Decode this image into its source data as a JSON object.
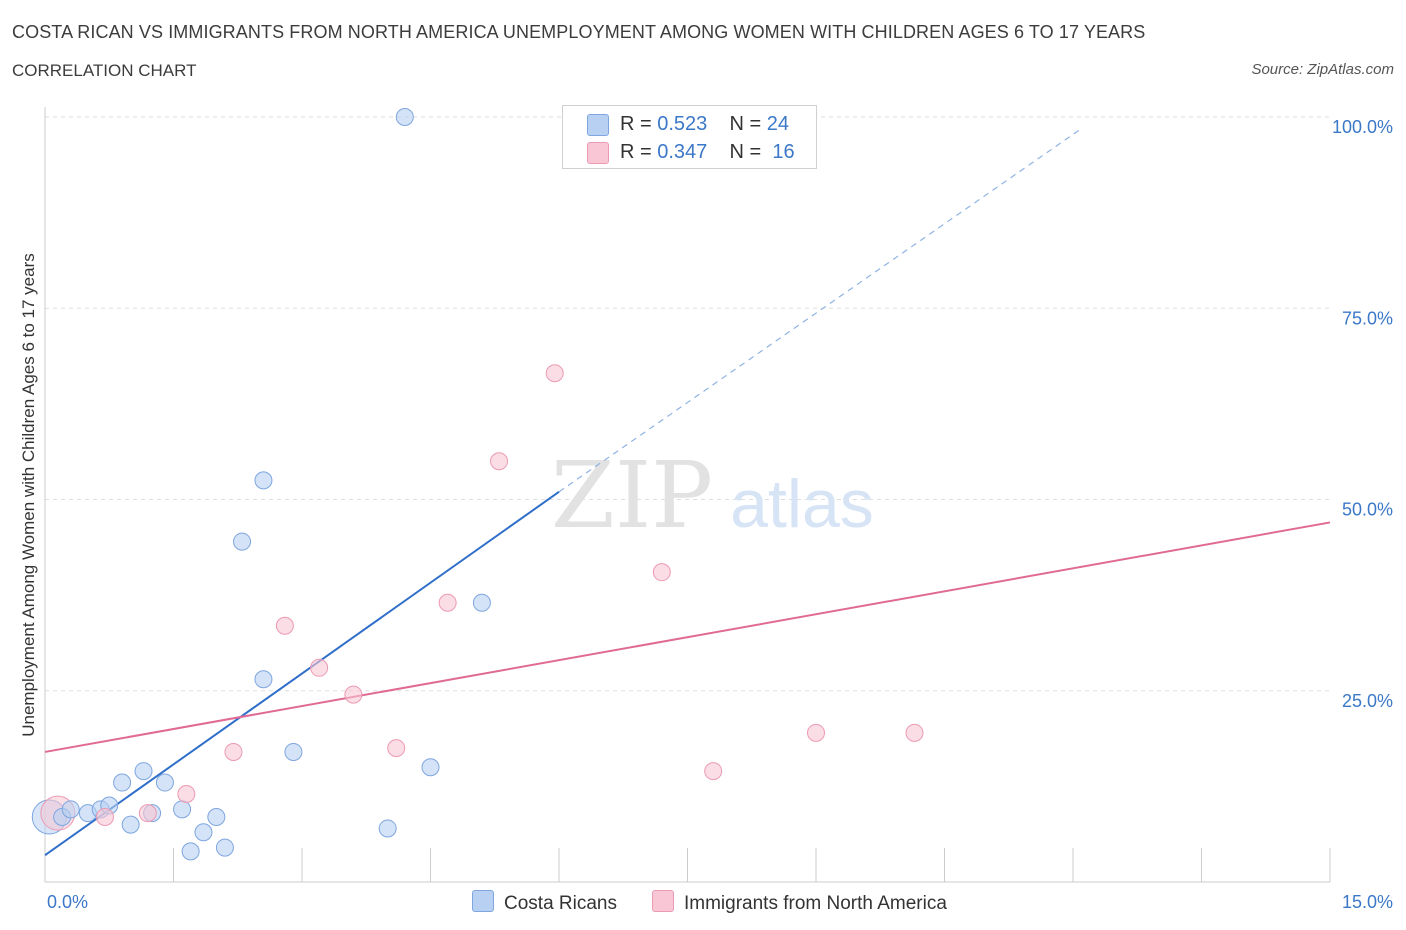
{
  "header": {
    "title": "COSTA RICAN VS IMMIGRANTS FROM NORTH AMERICA UNEMPLOYMENT AMONG WOMEN WITH CHILDREN AGES 6 TO 17 YEARS",
    "subtitle": "CORRELATION CHART",
    "source": "Source: ZipAtlas.com"
  },
  "legend": {
    "rows": [
      {
        "r_label": "R = ",
        "r_value": "0.523",
        "n_label": "N = ",
        "n_value": "24",
        "color": "#b8d0f2",
        "border": "#7ea6df"
      },
      {
        "r_label": "R = ",
        "r_value": "0.347",
        "n_label": "N = ",
        "n_value": "16",
        "color": "#f8c6d4",
        "border": "#ec9ab3"
      }
    ]
  },
  "bottom_legend": {
    "series1": "Costa Ricans",
    "series2": "Immigrants from North America"
  },
  "watermark": {
    "zip": "ZIP",
    "atlas": "atlas"
  },
  "colors": {
    "blue_point_fill": "#b8d0f2",
    "blue_point_stroke": "#7ea6df",
    "pink_point_fill": "#f8c6d4",
    "pink_point_stroke": "#ec9ab3",
    "blue_line": "#2f6fc9",
    "pink_line": "#e06a94",
    "tick_label": "#3b78c8",
    "grid": "#dddddd"
  },
  "chart_data": {
    "type": "scatter",
    "title": "COSTA RICAN VS IMMIGRANTS FROM NORTH AMERICA UNEMPLOYMENT AMONG WOMEN WITH CHILDREN AGES 6 TO 17 YEARS",
    "xlabel": "",
    "ylabel": "Unemployment Among Women with Children Ages 6 to 17 years",
    "xlim": [
      0,
      15
    ],
    "ylim": [
      0,
      100
    ],
    "x_tick_labels": [
      "0.0%",
      "15.0%"
    ],
    "y_ticks": [
      25,
      50,
      75,
      100
    ],
    "y_tick_labels": [
      "25.0%",
      "50.0%",
      "75.0%",
      "100.0%"
    ],
    "grid": true,
    "series": [
      {
        "name": "Costa Ricans",
        "R": 0.523,
        "N": 24,
        "points": [
          {
            "x": 0.05,
            "y": 8.5,
            "size": "large"
          },
          {
            "x": 0.2,
            "y": 8.5
          },
          {
            "x": 0.3,
            "y": 9.5
          },
          {
            "x": 0.5,
            "y": 9.0
          },
          {
            "x": 0.65,
            "y": 9.5
          },
          {
            "x": 0.75,
            "y": 10.0
          },
          {
            "x": 0.9,
            "y": 13.0
          },
          {
            "x": 1.0,
            "y": 7.5
          },
          {
            "x": 1.15,
            "y": 14.5
          },
          {
            "x": 1.25,
            "y": 9.0
          },
          {
            "x": 1.4,
            "y": 13.0
          },
          {
            "x": 1.6,
            "y": 9.5
          },
          {
            "x": 1.7,
            "y": 4.0
          },
          {
            "x": 1.85,
            "y": 6.5
          },
          {
            "x": 2.0,
            "y": 8.5
          },
          {
            "x": 2.1,
            "y": 4.5
          },
          {
            "x": 2.3,
            "y": 44.5
          },
          {
            "x": 2.55,
            "y": 52.5
          },
          {
            "x": 2.55,
            "y": 26.5
          },
          {
            "x": 2.9,
            "y": 17.0
          },
          {
            "x": 4.0,
            "y": 7.0
          },
          {
            "x": 4.2,
            "y": 100.0
          },
          {
            "x": 4.5,
            "y": 15.0
          },
          {
            "x": 5.1,
            "y": 36.5
          }
        ],
        "trend": {
          "x0": 0,
          "y0": 3.5,
          "x_solid_end": 6.0,
          "y_solid_end": 51.0,
          "x_dash_end": 12.1,
          "y_dash_end": 98.5
        }
      },
      {
        "name": "Immigrants from North America",
        "R": 0.347,
        "N": 16,
        "points": [
          {
            "x": 0.15,
            "y": 9.0,
            "size": "large"
          },
          {
            "x": 0.7,
            "y": 8.5
          },
          {
            "x": 1.2,
            "y": 9.0
          },
          {
            "x": 1.65,
            "y": 11.5
          },
          {
            "x": 2.2,
            "y": 17.0
          },
          {
            "x": 2.8,
            "y": 33.5
          },
          {
            "x": 3.2,
            "y": 28.0
          },
          {
            "x": 3.6,
            "y": 24.5
          },
          {
            "x": 4.1,
            "y": 17.5
          },
          {
            "x": 4.7,
            "y": 36.5
          },
          {
            "x": 5.3,
            "y": 55.0
          },
          {
            "x": 5.95,
            "y": 66.5
          },
          {
            "x": 7.2,
            "y": 40.5
          },
          {
            "x": 7.8,
            "y": 14.5
          },
          {
            "x": 9.0,
            "y": 19.5
          },
          {
            "x": 10.15,
            "y": 19.5
          }
        ],
        "trend": {
          "x0": 0,
          "y0": 17.0,
          "x1": 15,
          "y1": 47.0
        }
      }
    ]
  }
}
